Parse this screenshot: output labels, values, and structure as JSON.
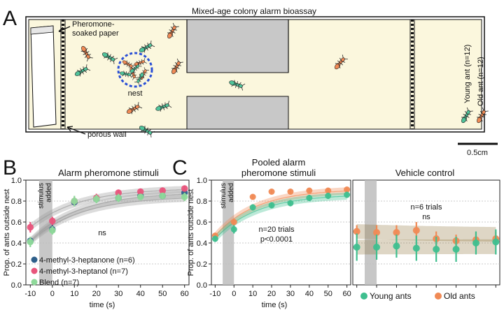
{
  "panelA": {
    "letter": "A",
    "title": "Mixed-age colony alarm bioassay",
    "paper_label_line1": "Pheromone-",
    "paper_label_line2": "soaked paper",
    "nest_label": "nest",
    "wall_label": "porous wall",
    "young_label": "Young ant (n=12)",
    "old_label": "Old ant (n=12)",
    "scale_label": "0.5cm",
    "colors": {
      "arena": "#fbf7dd",
      "obstacle": "#c8c8c8",
      "young": "#4fc39a",
      "old": "#f08a55",
      "nest_ring": "#2a4fd6"
    }
  },
  "panelB": {
    "letter": "B",
    "chart_data": {
      "type": "scatter",
      "title": "Alarm pheromone stimuli",
      "xlabel": "time (s)",
      "ylabel": "Prop. of ants outside nest",
      "xlim": [
        -12,
        62
      ],
      "ylim": [
        0.0,
        1.0
      ],
      "xticks": [
        "-10",
        "0",
        "10",
        "20",
        "30",
        "40",
        "50",
        "60"
      ],
      "yticks": [
        "0.0",
        "0.2",
        "0.4",
        "0.6",
        "0.8",
        "1.0"
      ],
      "annotation_stimulus": "stimulus added",
      "annotation_ns": "ns",
      "series": [
        {
          "name": "4-methyl-3-heptanone (n=6)",
          "color": "#2e5f8a",
          "x": [
            -10,
            0,
            10,
            20,
            30,
            40,
            50,
            60
          ],
          "y": [
            0.42,
            0.53,
            0.79,
            0.82,
            0.83,
            0.85,
            0.85,
            0.88
          ],
          "err": [
            0.03,
            0.04,
            0.04,
            0.03,
            0.03,
            0.03,
            0.03,
            0.03
          ]
        },
        {
          "name": "4-methyl-3-heptanol (n=7)",
          "color": "#e8557c",
          "x": [
            -10,
            0,
            10,
            20,
            30,
            40,
            50,
            60
          ],
          "y": [
            0.55,
            0.61,
            0.8,
            0.83,
            0.88,
            0.89,
            0.9,
            0.92
          ],
          "err": [
            0.05,
            0.04,
            0.04,
            0.04,
            0.03,
            0.03,
            0.03,
            0.03
          ]
        },
        {
          "name": "Blend (n=7)",
          "color": "#8fd99a",
          "x": [
            -10,
            0,
            10,
            20,
            30,
            40,
            50,
            60
          ],
          "y": [
            0.41,
            0.52,
            0.8,
            0.82,
            0.83,
            0.84,
            0.85,
            0.84
          ],
          "err": [
            0.05,
            0.04,
            0.05,
            0.04,
            0.04,
            0.03,
            0.03,
            0.04
          ]
        }
      ]
    }
  },
  "panelC": {
    "letter": "C",
    "chart_data": [
      {
        "type": "scatter",
        "title_line1": "Pooled alarm",
        "title_line2": "pheromone stimuli",
        "xlabel": "time (s)",
        "ylabel": "Prop. of ants outside nest",
        "xlim": [
          -12,
          62
        ],
        "ylim": [
          0.0,
          1.0
        ],
        "xticks": [
          "-10",
          "0",
          "10",
          "20",
          "30",
          "40",
          "50",
          "60"
        ],
        "yticks": [
          "0.0",
          "0.2",
          "0.4",
          "0.6",
          "0.8",
          "1.0"
        ],
        "annotation_stimulus": "stimulus added",
        "annotation_trials": "n=20 trials",
        "annotation_p": "p<0.0001",
        "series": [
          {
            "name": "Old ants",
            "color": "#f08a55",
            "x": [
              -10,
              0,
              10,
              20,
              30,
              40,
              50,
              60
            ],
            "y": [
              0.47,
              0.6,
              0.84,
              0.89,
              0.89,
              0.9,
              0.9,
              0.91
            ],
            "err": [
              0.02,
              0.03,
              0.02,
              0.02,
              0.02,
              0.02,
              0.02,
              0.02
            ]
          },
          {
            "name": "Young ants",
            "color": "#3fbf8f",
            "x": [
              -10,
              0,
              10,
              20,
              30,
              40,
              50,
              60
            ],
            "y": [
              0.44,
              0.53,
              0.74,
              0.76,
              0.78,
              0.83,
              0.85,
              0.86
            ],
            "err": [
              0.03,
              0.04,
              0.03,
              0.03,
              0.03,
              0.03,
              0.03,
              0.03
            ]
          }
        ]
      },
      {
        "type": "scatter",
        "title": "Vehicle control",
        "xlim": [
          -12,
          62
        ],
        "ylim": [
          0.0,
          1.0
        ],
        "annotation_trials": "n=6 trials",
        "annotation_ns": "ns",
        "legend": [
          "Young ants",
          "Old ants"
        ],
        "series": [
          {
            "name": "Old ants",
            "color": "#f08a55",
            "x": [
              -10,
              0,
              10,
              20,
              30,
              40,
              50,
              60
            ],
            "y": [
              0.51,
              0.5,
              0.5,
              0.52,
              0.44,
              0.42,
              0.43,
              0.44
            ],
            "err": [
              0.06,
              0.07,
              0.07,
              0.08,
              0.07,
              0.06,
              0.07,
              0.07
            ]
          },
          {
            "name": "Young ants",
            "color": "#3fbf8f",
            "x": [
              -10,
              0,
              10,
              20,
              30,
              40,
              50,
              60
            ],
            "y": [
              0.36,
              0.36,
              0.37,
              0.35,
              0.34,
              0.34,
              0.4,
              0.41
            ],
            "err": [
              0.13,
              0.12,
              0.11,
              0.12,
              0.12,
              0.12,
              0.11,
              0.12
            ]
          }
        ]
      }
    ]
  }
}
